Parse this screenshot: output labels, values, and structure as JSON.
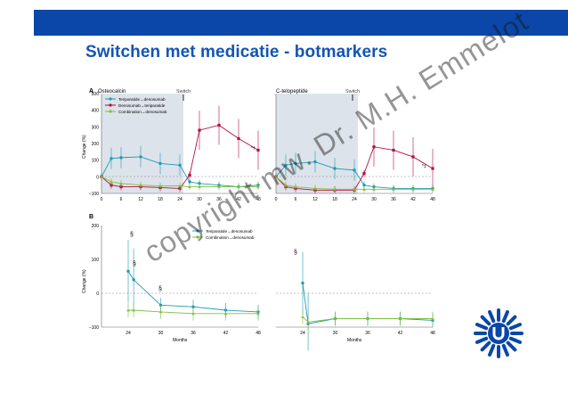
{
  "header": {
    "title": "Switchen met medicatie - botmarkers"
  },
  "watermark": {
    "text": "copyright mw. Dr. M.H. Emmelot"
  },
  "colors": {
    "band": "#0a47a8",
    "title": "#1355b4",
    "teal": "#1f9bb4",
    "crimson": "#b30f3f",
    "green": "#7dc03f",
    "shade": "#dde3ea"
  },
  "figure": {
    "panel_a_label": "A",
    "panel_b_label": "B",
    "switch_label": "Switch",
    "ylabel": "Change (%)",
    "xlabel": "Months",
    "panel_a_xticks": [
      "0",
      "6",
      "12",
      "18",
      "24",
      "30",
      "36",
      "42",
      "48"
    ],
    "panel_b_xticks_left": [
      "24",
      "30",
      "36",
      "42",
      "48"
    ],
    "panel_b_xticks_right": [
      "24",
      "30",
      "36",
      "42",
      "48"
    ],
    "osteocalcin": {
      "title": "Osteocalcin",
      "yticks": [
        "500",
        "400",
        "300",
        "200",
        "100",
        "0",
        "−100"
      ],
      "legend": [
        "Teriparatide→denosumab",
        "Denosumab→teriparatide",
        "Combination→denosumab"
      ],
      "markers": {
        "star1": "*†",
        "star2": ""
      }
    },
    "ctx": {
      "title": "C-telopeptide",
      "markers": {
        "star1": "*‡"
      }
    },
    "panel_b": {
      "yticks": [
        "200",
        "100",
        "0",
        "−100"
      ],
      "legend": [
        "Teriparatide→denosumab",
        "Combination→denosumab"
      ],
      "section_marks": [
        "§",
        "§",
        "§",
        "§"
      ]
    }
  },
  "chart_data": [
    {
      "type": "line",
      "title": "Osteocalcin",
      "xlabel": "",
      "ylabel": "Change (%)",
      "ylim": [
        -100,
        500
      ],
      "x": [
        0,
        3,
        6,
        12,
        18,
        24,
        27,
        30,
        36,
        42,
        48
      ],
      "series": [
        {
          "name": "Teriparatide→denosumab",
          "values": [
            0,
            110,
            115,
            120,
            80,
            70,
            -30,
            -40,
            -50,
            -60,
            -50
          ]
        },
        {
          "name": "Denosumab→teriparatide",
          "values": [
            0,
            -50,
            -60,
            -60,
            -65,
            -70,
            10,
            280,
            310,
            230,
            160
          ]
        },
        {
          "name": "Combination→denosumab",
          "values": [
            0,
            -30,
            -40,
            -50,
            -55,
            -55,
            -60,
            -60,
            -60,
            -60,
            -60
          ]
        }
      ]
    },
    {
      "type": "line",
      "title": "C-telopeptide",
      "xlabel": "",
      "ylabel": "",
      "ylim": [
        -100,
        500
      ],
      "x": [
        0,
        3,
        6,
        12,
        18,
        24,
        27,
        30,
        36,
        42,
        48
      ],
      "series": [
        {
          "name": "Teriparatide→denosumab",
          "values": [
            0,
            70,
            80,
            90,
            50,
            40,
            -50,
            -60,
            -70,
            -70,
            -70
          ]
        },
        {
          "name": "Denosumab→teriparatide",
          "values": [
            0,
            -60,
            -70,
            -80,
            -80,
            -80,
            20,
            180,
            160,
            120,
            50
          ]
        },
        {
          "name": "Combination→denosumab",
          "values": [
            0,
            -50,
            -60,
            -70,
            -75,
            -75,
            -75,
            -75,
            -75,
            -75,
            -75
          ]
        }
      ]
    },
    {
      "type": "line",
      "title": "",
      "xlabel": "Months",
      "ylabel": "Change (%)",
      "ylim": [
        -100,
        200
      ],
      "x": [
        24,
        25,
        30,
        36,
        42,
        48
      ],
      "series": [
        {
          "name": "Teriparatide→denosumab",
          "values": [
            65,
            40,
            -35,
            -40,
            -50,
            -55
          ]
        },
        {
          "name": "Combination→denosumab",
          "values": [
            -50,
            -50,
            -55,
            -60,
            -60,
            -60
          ]
        }
      ]
    },
    {
      "type": "line",
      "title": "",
      "xlabel": "Months",
      "ylabel": "",
      "ylim": [
        -100,
        200
      ],
      "x": [
        24,
        25,
        30,
        36,
        42,
        48
      ],
      "series": [
        {
          "name": "Teriparatide→denosumab",
          "values": [
            30,
            -90,
            -75,
            -75,
            -75,
            -80
          ]
        },
        {
          "name": "Combination→denosumab",
          "values": [
            -70,
            -85,
            -75,
            -75,
            -75,
            -75
          ]
        }
      ]
    }
  ]
}
